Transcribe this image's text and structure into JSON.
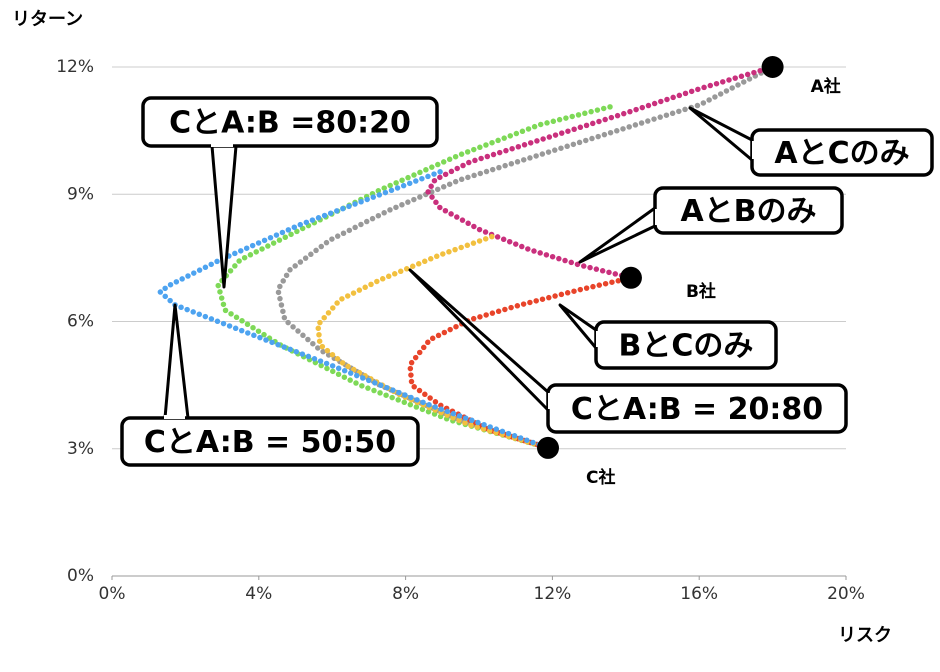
{
  "chart_data": {
    "type": "line",
    "y_label": "リターン",
    "x_label": "リスク",
    "xlim": [
      0,
      20
    ],
    "ylim": [
      0,
      12
    ],
    "xticks": [
      {
        "value": 0,
        "label": "0%"
      },
      {
        "value": 4,
        "label": "4%"
      },
      {
        "value": 8,
        "label": "8%"
      },
      {
        "value": 12,
        "label": "12%"
      },
      {
        "value": 16,
        "label": "16%"
      },
      {
        "value": 20,
        "label": "20%"
      }
    ],
    "yticks": [
      {
        "value": 0,
        "label": "0%"
      },
      {
        "value": 3,
        "label": "3%"
      },
      {
        "value": 6,
        "label": "6%"
      },
      {
        "value": 9,
        "label": "9%"
      },
      {
        "value": 12,
        "label": "12%"
      }
    ],
    "grid": true,
    "series": [
      {
        "name": "CとA:B =80:20",
        "color": "#7ed957",
        "x": [
          13.57,
          11.66,
          9.48,
          7.3,
          5.12,
          3.49,
          2.89,
          3.08,
          4.58,
          6.76,
          9.2,
          11.88
        ],
        "values": [
          11.06,
          10.64,
          9.93,
          9.1,
          8.16,
          7.45,
          6.86,
          6.27,
          5.45,
          4.5,
          3.68,
          3.02
        ]
      },
      {
        "name": "AとCのみ",
        "color": "#999999",
        "x": [
          18.0,
          16.02,
          13.84,
          11.66,
          9.48,
          7.57,
          5.94,
          4.85,
          4.52,
          4.71,
          5.67,
          7.3,
          9.48,
          11.88
        ],
        "values": [
          12.0,
          11.11,
          10.52,
          9.93,
          9.34,
          8.63,
          7.92,
          7.22,
          6.75,
          6.04,
          5.33,
          4.5,
          3.68,
          3.02
        ]
      },
      {
        "name": "AとBのみ",
        "color": "#c9307d",
        "x": [
          18.0,
          16.02,
          13.84,
          11.66,
          9.75,
          8.8,
          8.61,
          8.94,
          10.03,
          11.39,
          12.75,
          14.14
        ],
        "values": [
          12.0,
          11.49,
          10.87,
          10.28,
          9.76,
          9.34,
          9.06,
          8.68,
          8.16,
          7.69,
          7.33,
          7.03
        ]
      },
      {
        "name": "BとCのみ",
        "color": "#e8442a",
        "x": [
          14.14,
          12.75,
          11.12,
          9.75,
          8.66,
          8.12,
          8.17,
          8.94,
          10.3,
          11.88
        ],
        "values": [
          7.03,
          6.75,
          6.39,
          6.04,
          5.57,
          4.98,
          4.5,
          4.03,
          3.44,
          3.02
        ]
      },
      {
        "name": "CとA:B = 20:80",
        "color": "#f2c03f",
        "x": [
          10.35,
          8.94,
          7.3,
          6.21,
          5.61,
          5.67,
          6.35,
          7.85,
          9.75,
          11.88
        ],
        "values": [
          8.0,
          7.57,
          6.98,
          6.51,
          5.92,
          5.45,
          4.98,
          4.27,
          3.56,
          3.02
        ]
      },
      {
        "name": "CとA:B = 50:50",
        "color": "#4da3f0",
        "x": [
          8.94,
          7.3,
          5.12,
          2.94,
          1.58,
          1.31,
          1.72,
          3.49,
          5.94,
          8.66,
          11.88
        ],
        "values": [
          9.53,
          8.99,
          8.28,
          7.45,
          6.86,
          6.7,
          6.39,
          5.8,
          4.98,
          4.03,
          3.02
        ]
      }
    ],
    "points": {
      "labels": [
        "A社",
        "B社",
        "C社"
      ],
      "x": [
        18.0,
        14.14,
        11.88
      ],
      "values": [
        12.0,
        7.03,
        3.02
      ]
    }
  }
}
